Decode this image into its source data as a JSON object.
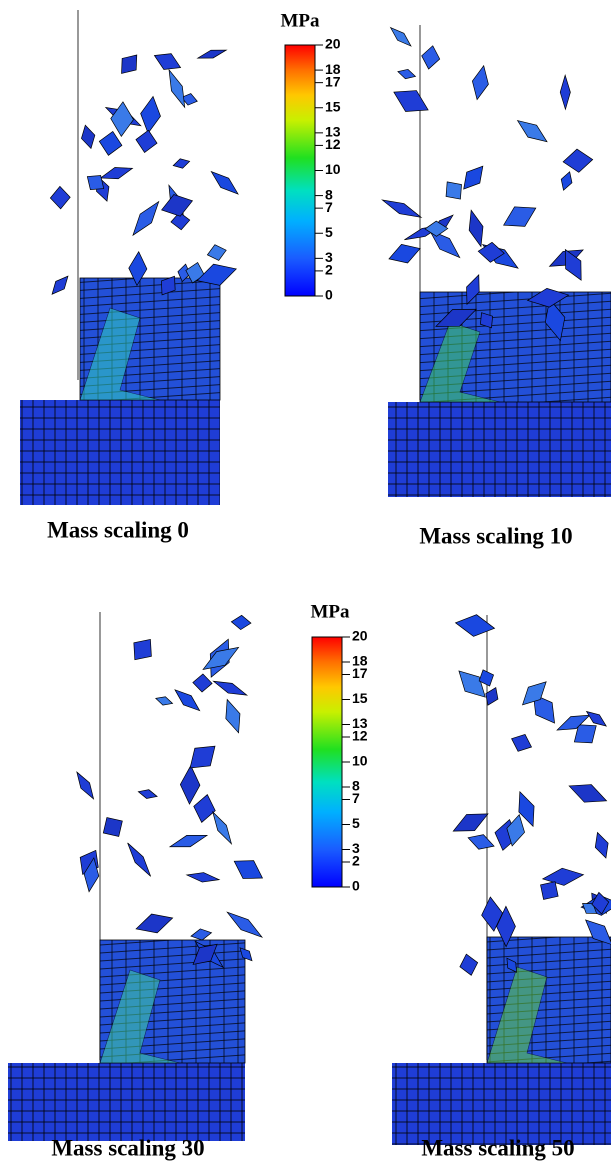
{
  "panels": [
    {
      "caption": "Mass scaling 0"
    },
    {
      "caption": "Mass scaling 10"
    },
    {
      "caption": "Mass scaling 30"
    },
    {
      "caption": "Mass scaling 50"
    }
  ],
  "colorbars": [
    {
      "title": "MPa",
      "ticks": [
        20,
        18,
        17,
        15,
        13,
        12,
        10,
        8,
        7,
        5,
        3,
        2,
        0
      ]
    },
    {
      "title": "MPa",
      "ticks": [
        20,
        18,
        17,
        15,
        13,
        12,
        10,
        8,
        7,
        5,
        3,
        2,
        0
      ]
    }
  ]
}
